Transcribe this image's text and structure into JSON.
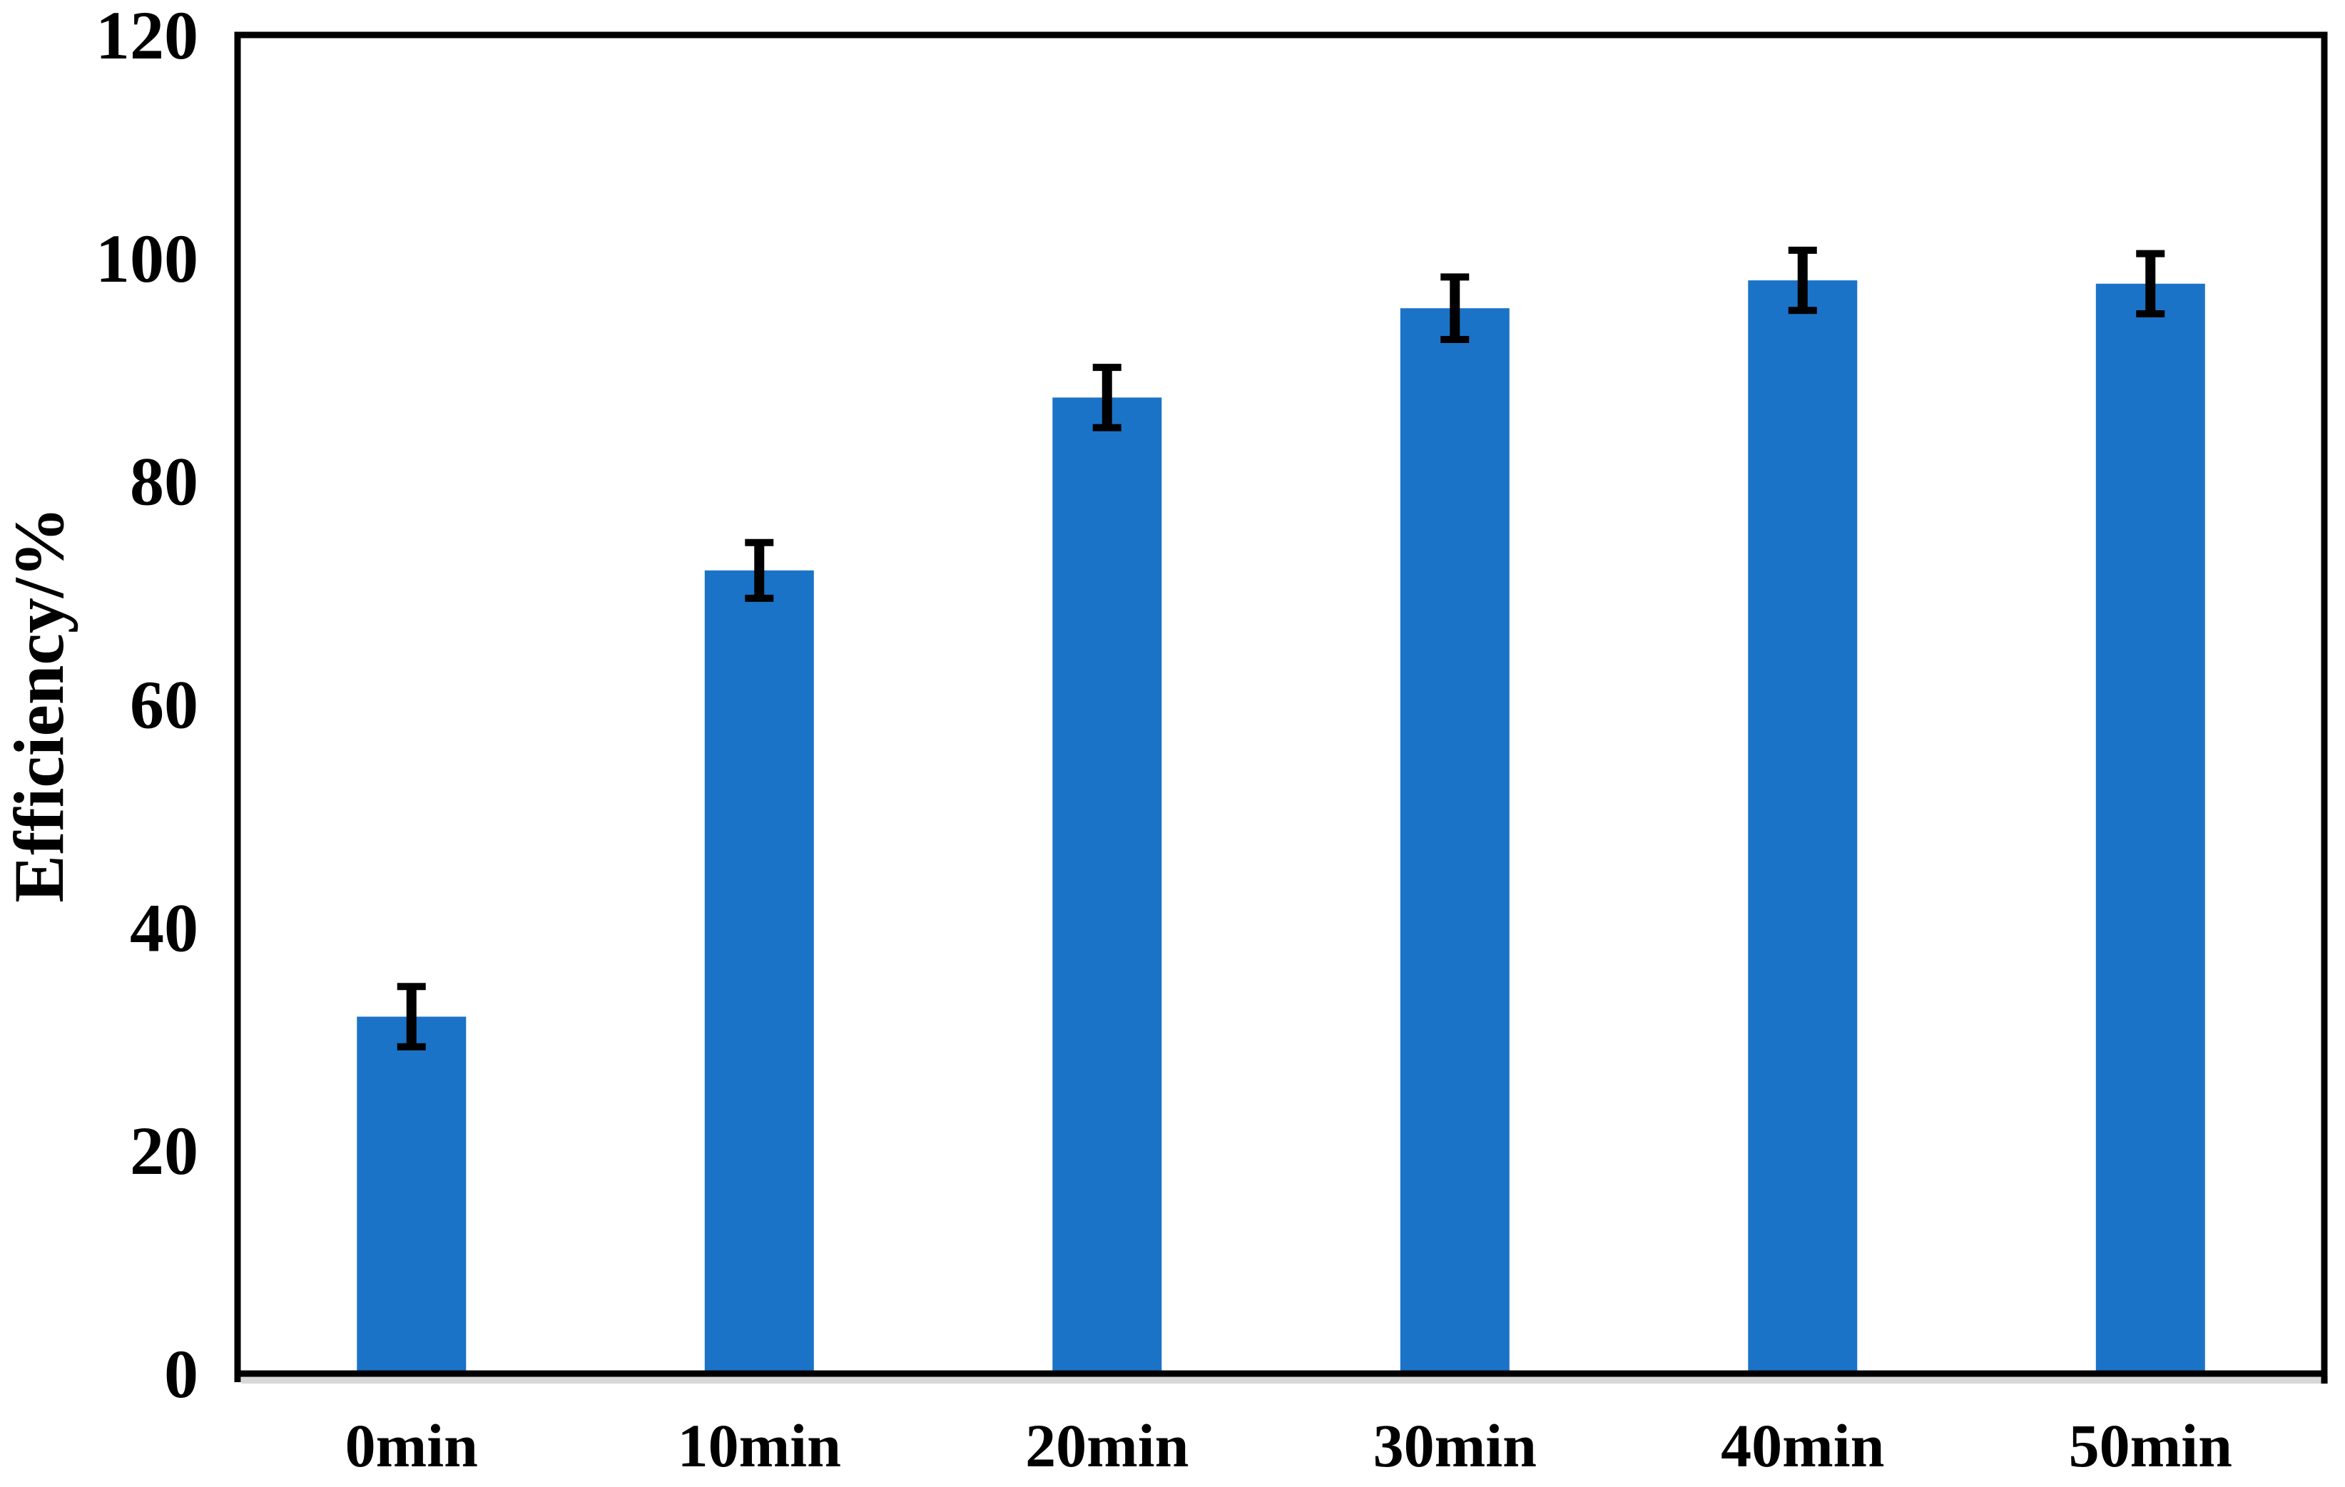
{
  "chart_data": {
    "type": "bar",
    "title": "",
    "xlabel": "",
    "ylabel": "Efficiency/%",
    "categories": [
      "0min",
      "10min",
      "20min",
      "30min",
      "40min",
      "50min"
    ],
    "values": [
      32,
      72,
      87.5,
      95.5,
      98,
      97.7
    ],
    "error_bars": [
      2.7,
      2.5,
      2.7,
      2.8,
      2.7,
      2.7
    ],
    "ylim": [
      0,
      120
    ],
    "yticks": [
      0,
      20,
      40,
      60,
      80,
      100,
      120
    ],
    "grid": false,
    "legend": null,
    "colors": {
      "bar": "#1B73C8",
      "error_bar": "#000000",
      "frame": "#000000",
      "axis_shadow": "#D8D8D8",
      "background": "#FFFFFF",
      "text": "#000000"
    }
  }
}
